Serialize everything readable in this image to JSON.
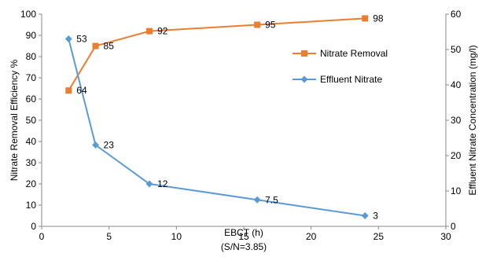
{
  "chart_data": {
    "type": "line",
    "xlabel": "EBCT (h)",
    "xlabel_sub": "(S/N=3.85)",
    "ylabel_left": "Nitrate Removal Efficiency %",
    "ylabel_right": "Effluent Nitrate Concentration (mg/l)",
    "xlim": [
      0,
      30
    ],
    "ylim_left": [
      0,
      100
    ],
    "ylim_right": [
      0,
      60
    ],
    "x_ticks": [
      "0",
      "5",
      "10",
      "15",
      "20",
      "25",
      "30"
    ],
    "y_left_ticks": [
      "0",
      "10",
      "20",
      "30",
      "40",
      "50",
      "60",
      "70",
      "80",
      "90",
      "100"
    ],
    "y_right_ticks": [
      "0",
      "10",
      "20",
      "30",
      "40",
      "50",
      "60"
    ],
    "grid": false,
    "legend_position": "right, inside plot",
    "series": [
      {
        "name": "Nitrate Removal",
        "axis": "left",
        "color": "#ED7D31",
        "marker": "square",
        "x": [
          2,
          4,
          8,
          16,
          24
        ],
        "values": [
          64,
          85,
          92,
          95,
          98
        ],
        "labels": [
          "64",
          "85",
          "92",
          "95",
          "98"
        ]
      },
      {
        "name": "Effluent Nitrate",
        "axis": "right",
        "color": "#5B9BD5",
        "marker": "diamond",
        "x": [
          2,
          4,
          8,
          16,
          24
        ],
        "values": [
          53,
          23,
          12,
          7.5,
          3
        ],
        "labels": [
          "53",
          "23",
          "12",
          "7.5",
          "3"
        ]
      }
    ]
  }
}
